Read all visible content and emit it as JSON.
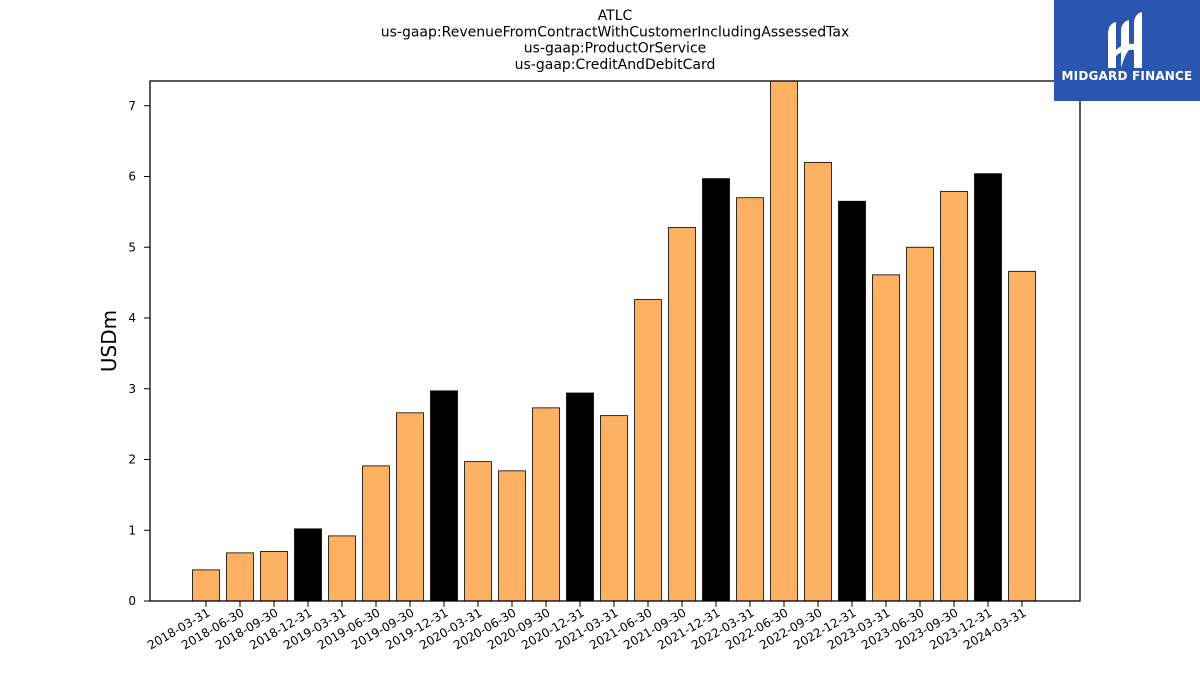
{
  "chart_data": {
    "type": "bar",
    "title_lines": [
      "ATLC",
      "us-gaap:RevenueFromContractWithCustomerIncludingAssessedTax",
      "us-gaap:ProductOrService",
      "us-gaap:CreditAndDebitCard"
    ],
    "ylabel": "USDm",
    "xlabel": "",
    "ylim": [
      0,
      7.35
    ],
    "yticks": [
      0,
      1,
      2,
      3,
      4,
      5,
      6,
      7
    ],
    "categories": [
      "2018-03-31",
      "2018-06-30",
      "2018-09-30",
      "2018-12-31",
      "2019-03-31",
      "2019-06-30",
      "2019-09-30",
      "2019-12-31",
      "2020-03-31",
      "2020-06-30",
      "2020-09-30",
      "2020-12-31",
      "2021-03-31",
      "2021-06-30",
      "2021-09-30",
      "2021-12-31",
      "2022-03-31",
      "2022-06-30",
      "2022-09-30",
      "2022-12-31",
      "2023-03-31",
      "2023-06-30",
      "2023-09-30",
      "2023-12-31",
      "2024-03-31"
    ],
    "values": [
      0.44,
      0.68,
      0.7,
      1.02,
      0.92,
      1.91,
      2.66,
      2.97,
      1.97,
      1.84,
      2.73,
      2.94,
      2.62,
      4.26,
      5.28,
      5.97,
      5.7,
      7.35,
      6.2,
      5.65,
      4.61,
      5.0,
      5.79,
      6.04,
      4.66
    ],
    "colors": {
      "quarter": "#fbb062",
      "year_end": "#000000",
      "edge": "#000000"
    },
    "grid": false,
    "legend": "none"
  },
  "logo": {
    "text": "MIDGARD FINANCE",
    "icon": "midgard-logo-icon"
  }
}
